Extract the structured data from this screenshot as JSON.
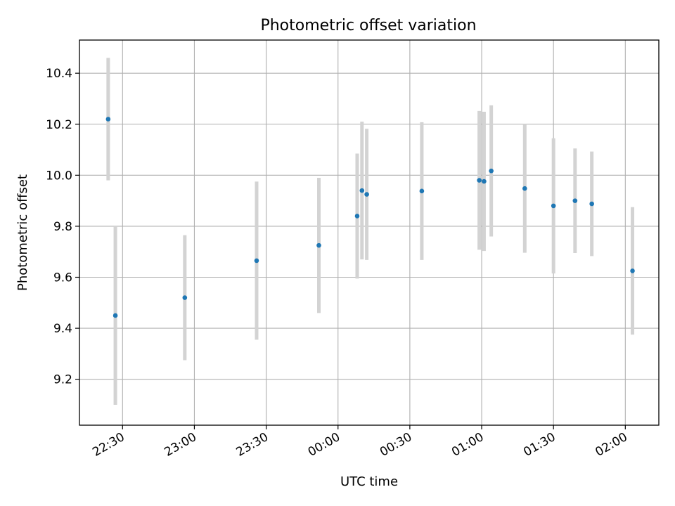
{
  "chart_data": {
    "type": "scatter",
    "title": "Photometric offset variation",
    "xlabel": "UTC time",
    "ylabel": "Photometric offset",
    "x_axis_kind": "time",
    "x_ticks": [
      "22:30",
      "23:00",
      "23:30",
      "00:00",
      "00:30",
      "01:00",
      "01:30",
      "02:00"
    ],
    "y_ticks": [
      "9.2",
      "9.4",
      "9.6",
      "9.8",
      "10.0",
      "10.2",
      "10.4"
    ],
    "xlim": [
      "22:12",
      "02:14"
    ],
    "ylim": [
      9.02,
      10.53
    ],
    "grid": true,
    "colors": {
      "points": "#1f77b4",
      "errorbars": "#d3d3d3",
      "grid": "#b0b0b0"
    },
    "points": [
      {
        "x": "22:24",
        "y": 10.22,
        "yerr": 0.24
      },
      {
        "x": "22:27",
        "y": 9.45,
        "yerr": 0.35
      },
      {
        "x": "22:56",
        "y": 9.52,
        "yerr": 0.245
      },
      {
        "x": "23:26",
        "y": 9.665,
        "yerr": 0.31
      },
      {
        "x": "23:52",
        "y": 9.725,
        "yerr": 0.265
      },
      {
        "x": "00:08",
        "y": 9.84,
        "yerr": 0.245
      },
      {
        "x": "00:10",
        "y": 9.94,
        "yerr": 0.27
      },
      {
        "x": "00:12",
        "y": 9.925,
        "yerr": 0.257
      },
      {
        "x": "00:35",
        "y": 9.938,
        "yerr": 0.27
      },
      {
        "x": "00:59",
        "y": 9.98,
        "yerr": 0.272
      },
      {
        "x": "01:01",
        "y": 9.976,
        "yerr": 0.273
      },
      {
        "x": "01:04",
        "y": 10.017,
        "yerr": 0.257
      },
      {
        "x": "01:18",
        "y": 9.948,
        "yerr": 0.252
      },
      {
        "x": "01:30",
        "y": 9.88,
        "yerr": 0.265
      },
      {
        "x": "01:39",
        "y": 9.9,
        "yerr": 0.205
      },
      {
        "x": "01:46",
        "y": 9.888,
        "yerr": 0.205
      },
      {
        "x": "02:03",
        "y": 9.625,
        "yerr": 0.25
      }
    ]
  }
}
